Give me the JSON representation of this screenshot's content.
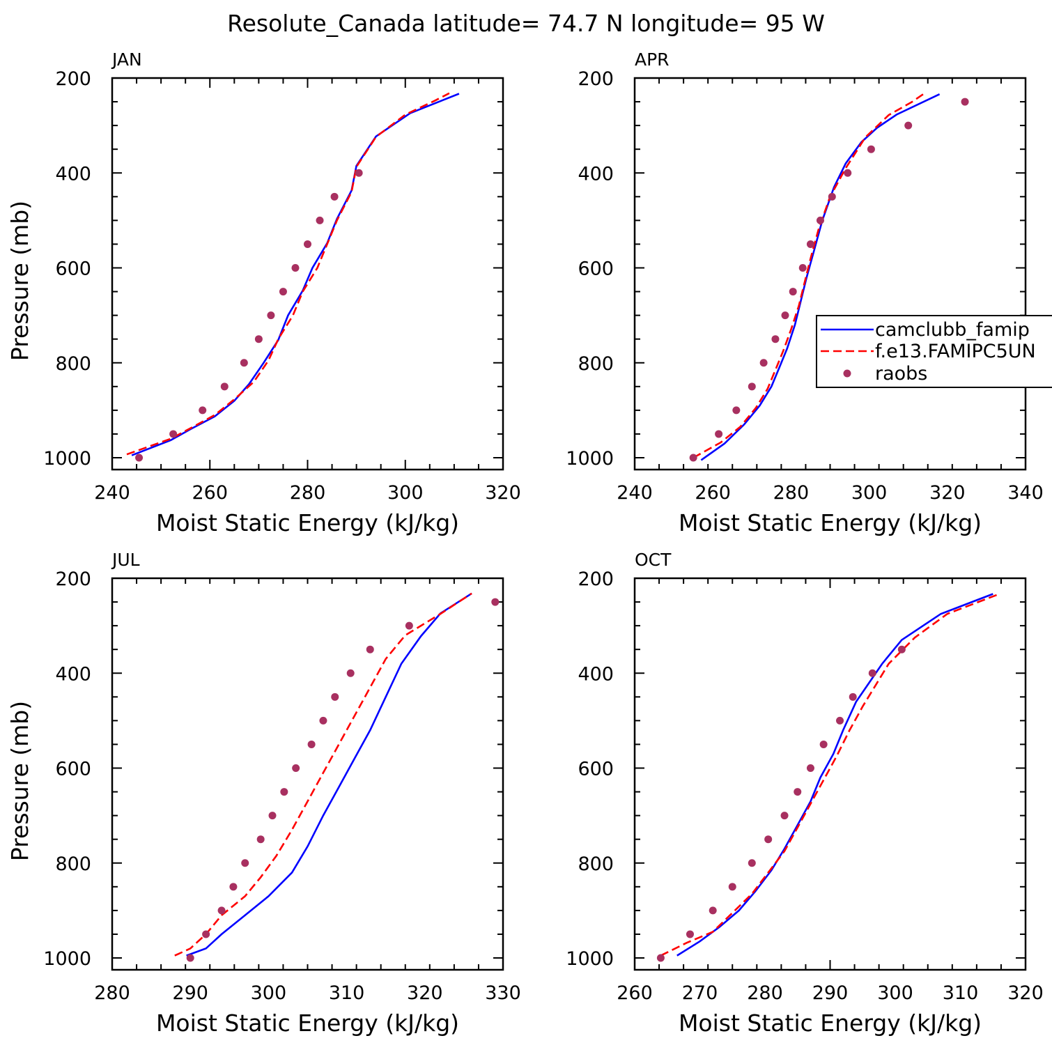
{
  "title": "Resolute_Canada  latitude= 74.7 N longitude= 95 W",
  "legend": {
    "placement": "inside right of APR panel, clipped by figure edge",
    "entries": [
      "camclubb_famip",
      "f.e13.FAMIPC5UN",
      "raobs"
    ]
  },
  "colors": {
    "model1": "#0000ff",
    "model2": "#ff0000",
    "obs": "#a83060",
    "axes": "#000000"
  },
  "chart_data": [
    {
      "type": "line",
      "panel_label": "JAN",
      "xlabel": "Moist Static Energy (kJ/kg)",
      "ylabel": "Pressure (mb)",
      "xlim": [
        240,
        320
      ],
      "ylim": [
        1000,
        200
      ],
      "xticks": [
        240,
        260,
        280,
        300,
        320
      ],
      "yticks": [
        200,
        400,
        600,
        800,
        1000
      ],
      "series": [
        {
          "name": "camclubb_famip",
          "style": "solid",
          "points": [
            [
              244,
              995
            ],
            [
              252,
              963
            ],
            [
              256,
              940
            ],
            [
              261,
              913
            ],
            [
              265,
              880
            ],
            [
              268,
              845
            ],
            [
              271,
              800
            ],
            [
              274,
              752
            ],
            [
              276,
              700
            ],
            [
              279,
              648
            ],
            [
              281,
              600
            ],
            [
              284,
              548
            ],
            [
              286,
              497
            ],
            [
              289,
              437
            ],
            [
              290,
              385
            ],
            [
              294,
              323
            ],
            [
              301,
              274
            ],
            [
              311,
              233
            ]
          ]
        },
        {
          "name": "f.e13.FAMIPC5UN",
          "style": "dashed",
          "points": [
            [
              243,
              993
            ],
            [
              252,
              960
            ],
            [
              256,
              938
            ],
            [
              261,
              910
            ],
            [
              265,
              877
            ],
            [
              269,
              840
            ],
            [
              272,
              795
            ],
            [
              274,
              750
            ],
            [
              277,
              700
            ],
            [
              279,
              650
            ],
            [
              282,
              600
            ],
            [
              284,
              550
            ],
            [
              286,
              500
            ],
            [
              289,
              440
            ],
            [
              290,
              387
            ],
            [
              294,
              324
            ],
            [
              300,
              277
            ],
            [
              306,
              248
            ],
            [
              309,
              232
            ]
          ]
        },
        {
          "name": "raobs",
          "style": "marker",
          "points": [
            [
              245.5,
              1000
            ],
            [
              252.5,
              950
            ],
            [
              258.5,
              900
            ],
            [
              263,
              850
            ],
            [
              267,
              800
            ],
            [
              270,
              750
            ],
            [
              272.5,
              700
            ],
            [
              275,
              650
            ],
            [
              277.5,
              600
            ],
            [
              280,
              550
            ],
            [
              282.5,
              500
            ],
            [
              285.5,
              450
            ],
            [
              290.5,
              400
            ]
          ]
        }
      ]
    },
    {
      "type": "line",
      "panel_label": "APR",
      "xlabel": "Moist Static Energy (kJ/kg)",
      "ylabel": "",
      "xlim": [
        240,
        340
      ],
      "ylim": [
        1000,
        200
      ],
      "xticks": [
        240,
        260,
        280,
        300,
        320,
        340
      ],
      "yticks": [
        200,
        400,
        600,
        800,
        1000
      ],
      "series": [
        {
          "name": "camclubb_famip",
          "style": "solid",
          "points": [
            [
              257,
              1005
            ],
            [
              263,
              970
            ],
            [
              268,
              930
            ],
            [
              272,
              890
            ],
            [
              275,
              850
            ],
            [
              277,
              810
            ],
            [
              279,
              770
            ],
            [
              281,
              720
            ],
            [
              282.5,
              670
            ],
            [
              284,
              620
            ],
            [
              286,
              560
            ],
            [
              288,
              500
            ],
            [
              291,
              430
            ],
            [
              294,
              380
            ],
            [
              298,
              335
            ],
            [
              302,
              305
            ],
            [
              307,
              277
            ],
            [
              318,
              234
            ]
          ]
        },
        {
          "name": "f.e13.FAMIPC5UN",
          "style": "dashed",
          "points": [
            [
              255,
              1000
            ],
            [
              262,
              968
            ],
            [
              267,
              935
            ],
            [
              271,
              895
            ],
            [
              274,
              855
            ],
            [
              276,
              815
            ],
            [
              278,
              775
            ],
            [
              280,
              730
            ],
            [
              282,
              680
            ],
            [
              283.5,
              630
            ],
            [
              285,
              580
            ],
            [
              287,
              520
            ],
            [
              290,
              450
            ],
            [
              294,
              390
            ],
            [
              299,
              325
            ],
            [
              305,
              278
            ],
            [
              311,
              250
            ],
            [
              314,
              233
            ]
          ]
        },
        {
          "name": "raobs",
          "style": "marker",
          "points": [
            [
              255,
              1000
            ],
            [
              261.5,
              950
            ],
            [
              266,
              900
            ],
            [
              270,
              850
            ],
            [
              273,
              800
            ],
            [
              276,
              750
            ],
            [
              278.5,
              700
            ],
            [
              280.5,
              650
            ],
            [
              283,
              600
            ],
            [
              285,
              550
            ],
            [
              287.5,
              500
            ],
            [
              290.5,
              450
            ],
            [
              294.5,
              400
            ],
            [
              300.5,
              350
            ],
            [
              310,
              300
            ],
            [
              324.5,
              250
            ]
          ]
        }
      ]
    },
    {
      "type": "line",
      "panel_label": "JUL",
      "xlabel": "Moist Static Energy (kJ/kg)",
      "ylabel": "Pressure (mb)",
      "xlim": [
        280,
        330
      ],
      "ylim": [
        1000,
        200
      ],
      "xticks": [
        280,
        290,
        300,
        310,
        320,
        330
      ],
      "yticks": [
        200,
        400,
        600,
        800,
        1000
      ],
      "series": [
        {
          "name": "camclubb_famip",
          "style": "solid",
          "points": [
            [
              289.5,
              995
            ],
            [
              292,
              980
            ],
            [
              294,
              950
            ],
            [
              297,
              910
            ],
            [
              300,
              870
            ],
            [
              303,
              820
            ],
            [
              305,
              765
            ],
            [
              307,
              700
            ],
            [
              309,
              640
            ],
            [
              311,
              580
            ],
            [
              313,
              520
            ],
            [
              315,
              450
            ],
            [
              317,
              380
            ],
            [
              319.5,
              322
            ],
            [
              322,
              274
            ],
            [
              326,
              232
            ]
          ]
        },
        {
          "name": "f.e13.FAMIPC5UN",
          "style": "dashed",
          "points": [
            [
              288,
              995
            ],
            [
              290,
              980
            ],
            [
              292,
              950
            ],
            [
              294,
              910
            ],
            [
              297,
              870
            ],
            [
              299,
              830
            ],
            [
              301,
              785
            ],
            [
              303,
              730
            ],
            [
              305,
              670
            ],
            [
              307,
              610
            ],
            [
              309,
              550
            ],
            [
              311,
              490
            ],
            [
              313,
              430
            ],
            [
              315,
              370
            ],
            [
              317.5,
              320
            ],
            [
              322,
              275
            ],
            [
              326,
              232
            ]
          ]
        },
        {
          "name": "raobs",
          "style": "marker",
          "points": [
            [
              290,
              1000
            ],
            [
              292,
              950
            ],
            [
              294,
              900
            ],
            [
              295.5,
              850
            ],
            [
              297,
              800
            ],
            [
              299,
              750
            ],
            [
              300.5,
              700
            ],
            [
              302,
              650
            ],
            [
              303.5,
              600
            ],
            [
              305.5,
              550
            ],
            [
              307,
              500
            ],
            [
              308.5,
              450
            ],
            [
              310.5,
              400
            ],
            [
              313,
              350
            ],
            [
              318,
              300
            ],
            [
              329,
              250
            ]
          ]
        }
      ]
    },
    {
      "type": "line",
      "panel_label": "OCT",
      "xlabel": "Moist Static Energy (kJ/kg)",
      "ylabel": "",
      "xlim": [
        260,
        320
      ],
      "ylim": [
        1000,
        200
      ],
      "xticks": [
        260,
        270,
        280,
        290,
        300,
        310,
        320
      ],
      "yticks": [
        200,
        400,
        600,
        800,
        1000
      ],
      "series": [
        {
          "name": "camclubb_famip",
          "style": "solid",
          "points": [
            [
              266.5,
              995
            ],
            [
              270,
              965
            ],
            [
              273,
              935
            ],
            [
              276,
              900
            ],
            [
              278.5,
              860
            ],
            [
              281,
              815
            ],
            [
              283,
              770
            ],
            [
              285,
              720
            ],
            [
              287,
              670
            ],
            [
              288.5,
              620
            ],
            [
              290.5,
              570
            ],
            [
              292,
              520
            ],
            [
              294,
              460
            ],
            [
              296,
              420
            ],
            [
              298,
              380
            ],
            [
              301,
              330
            ],
            [
              307,
              275
            ],
            [
              315,
              233
            ]
          ]
        },
        {
          "name": "f.e13.FAMIPC5UN",
          "style": "dashed",
          "points": [
            [
              264,
              995
            ],
            [
              268,
              968
            ],
            [
              272,
              945
            ],
            [
              275,
              905
            ],
            [
              278,
              865
            ],
            [
              280.5,
              820
            ],
            [
              283,
              775
            ],
            [
              285,
              725
            ],
            [
              287,
              675
            ],
            [
              289,
              625
            ],
            [
              291,
              575
            ],
            [
              293,
              520
            ],
            [
              295,
              470
            ],
            [
              297,
              425
            ],
            [
              299,
              380
            ],
            [
              303,
              325
            ],
            [
              308,
              275
            ],
            [
              316,
              233
            ]
          ]
        },
        {
          "name": "raobs",
          "style": "marker",
          "points": [
            [
              264,
              1000
            ],
            [
              268.5,
              950
            ],
            [
              272,
              900
            ],
            [
              275,
              850
            ],
            [
              278,
              800
            ],
            [
              280.5,
              750
            ],
            [
              283,
              700
            ],
            [
              285,
              650
            ],
            [
              287,
              600
            ],
            [
              289,
              550
            ],
            [
              291.5,
              500
            ],
            [
              293.5,
              450
            ],
            [
              296.5,
              400
            ],
            [
              301,
              350
            ]
          ]
        }
      ]
    }
  ]
}
